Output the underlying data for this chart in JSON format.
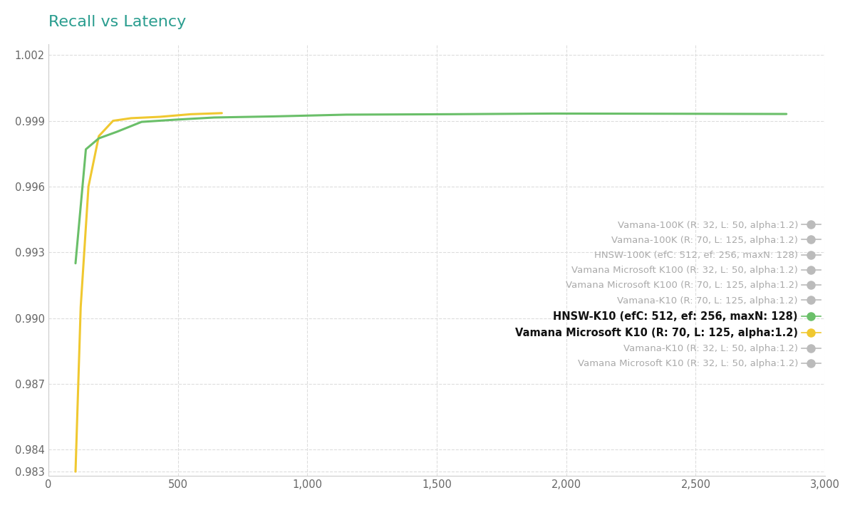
{
  "title": "Recall vs Latency",
  "title_color": "#2a9d8f",
  "background_color": "#ffffff",
  "xlim": [
    0,
    3000
  ],
  "ylim": [
    0.9828,
    1.0025
  ],
  "xticks": [
    0,
    500,
    1000,
    1500,
    2000,
    2500,
    3000
  ],
  "yticks": [
    0.983,
    0.984,
    0.987,
    0.99,
    0.993,
    0.996,
    0.999,
    1.002
  ],
  "plotted_series": [
    {
      "label": "HNSW-K10 (efC: 512, ef: 256, maxN: 128)",
      "color": "#6abf69",
      "linewidth": 2.2,
      "x": [
        105,
        145,
        195,
        265,
        360,
        490,
        640,
        870,
        1150,
        1550,
        1950,
        2450,
        2850
      ],
      "y": [
        0.9925,
        0.9977,
        0.9982,
        0.9985,
        0.99895,
        0.99905,
        0.99915,
        0.9992,
        0.99928,
        0.9993,
        0.99933,
        0.99932,
        0.99931
      ],
      "bold_legend": true,
      "marker_color": "#6abf69",
      "zorder": 5
    },
    {
      "label": "Vamana Microsoft K10 (R: 70, L: 125, alpha:1.2)",
      "color": "#f0c830",
      "linewidth": 2.2,
      "x": [
        105,
        125,
        155,
        195,
        250,
        320,
        430,
        550,
        670
      ],
      "y": [
        0.983,
        0.9905,
        0.996,
        0.9983,
        0.999,
        0.99912,
        0.99918,
        0.9993,
        0.99935
      ],
      "bold_legend": true,
      "marker_color": "#f0c830",
      "zorder": 4
    }
  ],
  "legend_only_series": [
    {
      "label": "Vamana-100K (R: 32, L: 50, alpha:1.2)",
      "color": "#bbbbbb",
      "bold_legend": false
    },
    {
      "label": "Vamana-100K (R: 70, L: 125, alpha:1.2)",
      "color": "#bbbbbb",
      "bold_legend": false
    },
    {
      "label": "HNSW-100K (efC: 512, ef: 256, maxN: 128)",
      "color": "#bbbbbb",
      "bold_legend": false
    },
    {
      "label": "Vamana Microsoft K100 (R: 32, L: 50, alpha:1.2)",
      "color": "#bbbbbb",
      "bold_legend": false
    },
    {
      "label": "Vamana Microsoft K100 (R: 70, L: 125, alpha:1.2)",
      "color": "#bbbbbb",
      "bold_legend": false
    },
    {
      "label": "Vamana-K10 (R: 70, L: 125, alpha:1.2)",
      "color": "#bbbbbb",
      "bold_legend": false
    },
    {
      "label": "HNSW-K10 (efC: 512, ef: 256, maxN: 128)",
      "color": "#6abf69",
      "bold_legend": true
    },
    {
      "label": "Vamana Microsoft K10 (R: 70, L: 125, alpha:1.2)",
      "color": "#f0c830",
      "bold_legend": true
    },
    {
      "label": "Vamana-K10 (R: 32, L: 50, alpha:1.2)",
      "color": "#bbbbbb",
      "bold_legend": false
    },
    {
      "label": "Vamana Microsoft K10 (R: 32, L: 50, alpha:1.2)",
      "color": "#bbbbbb",
      "bold_legend": false
    }
  ],
  "grid_color": "#dddddd",
  "spine_color": "#cccccc",
  "tick_color": "#666666",
  "tick_fontsize": 10.5
}
